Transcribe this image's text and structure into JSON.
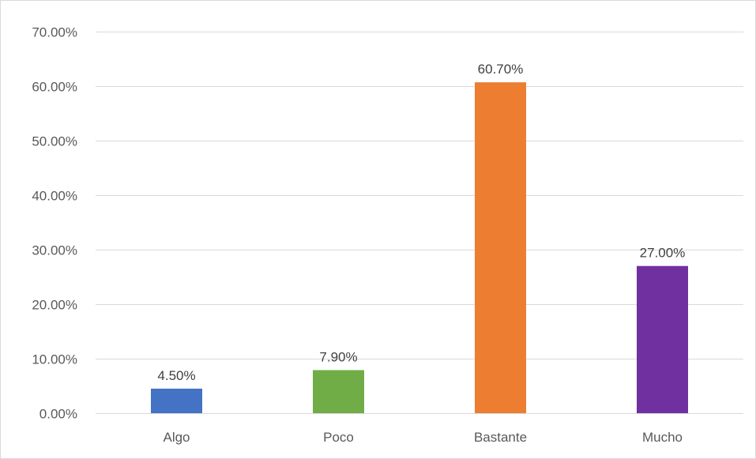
{
  "chart_data": {
    "type": "bar",
    "title": "",
    "xlabel": "",
    "ylabel": "",
    "categories": [
      "Algo",
      "Poco",
      "Bastante",
      "Mucho"
    ],
    "values": [
      4.5,
      7.9,
      60.7,
      27.0
    ],
    "data_labels": [
      "4.50%",
      "7.90%",
      "60.70%",
      "27.00%"
    ],
    "bar_colors": [
      "#4472c4",
      "#70ad47",
      "#ed7d31",
      "#7030a0"
    ],
    "ylim": [
      0,
      70
    ],
    "y_ticks": [
      0,
      10,
      20,
      30,
      40,
      50,
      60,
      70
    ],
    "y_tick_labels": [
      "0.00%",
      "10.00%",
      "20.00%",
      "30.00%",
      "40.00%",
      "50.00%",
      "60.00%",
      "70.00%"
    ],
    "grid": true,
    "legend": "none"
  }
}
